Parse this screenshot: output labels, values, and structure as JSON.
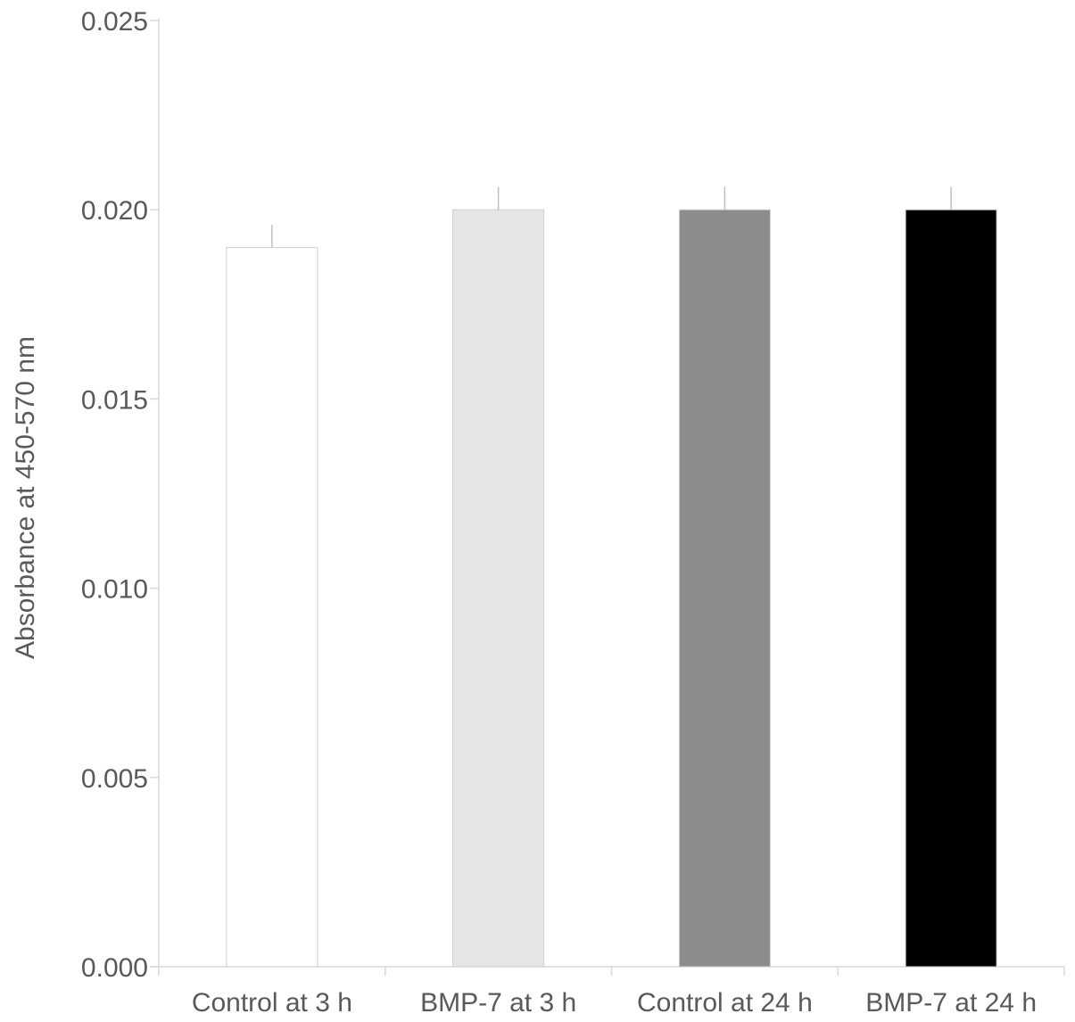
{
  "chart_data": {
    "type": "bar",
    "title": "",
    "xlabel": "",
    "ylabel": "Absorbance at 450-570 nm",
    "ylim": [
      0,
      0.025
    ],
    "yticks": [
      "0.000",
      "0.005",
      "0.010",
      "0.015",
      "0.020",
      "0.025"
    ],
    "grid": false,
    "categories": [
      "Control at 3 h",
      "BMP-7 at 3 h",
      "Control at 24 h",
      "BMP-7 at 24 h"
    ],
    "series": [
      {
        "values": [
          0.019,
          0.02,
          0.02,
          0.02
        ],
        "error_upper": [
          0.0006,
          0.0006,
          0.0006,
          0.0006
        ],
        "colors": [
          "#ffffff",
          "#e6e6e6",
          "#8c8c8c",
          "#000000"
        ]
      }
    ]
  }
}
